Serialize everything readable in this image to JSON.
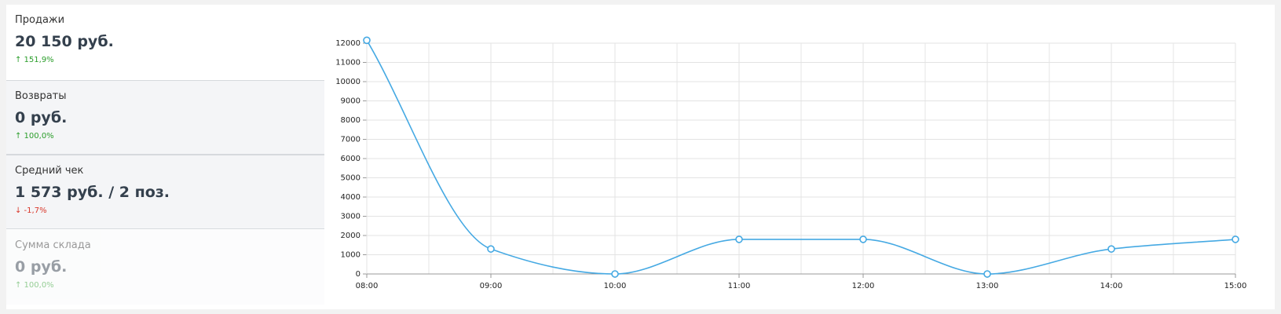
{
  "cards": [
    {
      "title": "Продажи",
      "value": "20 150 руб.",
      "change": "↑ 151,9%",
      "change_color": "#2a9d2a"
    },
    {
      "title": "Возвраты",
      "value": "0 руб.",
      "change": "↑ 100,0%",
      "change_color": "#2a9d2a"
    },
    {
      "title": "Средний чек",
      "value": "1 573 руб. / 2 поз.",
      "change": "↓ -1,7%",
      "change_color": "#d9382b"
    },
    {
      "title": "Сумма склада",
      "value": "0 руб.",
      "change": "↑ 100,0%",
      "change_color": "#2a9d2a"
    }
  ],
  "chart_data": {
    "type": "line",
    "categories": [
      "08:00",
      "09:00",
      "10:00",
      "11:00",
      "12:00",
      "13:00",
      "14:00",
      "15:00"
    ],
    "values": [
      12150,
      1300,
      0,
      1800,
      1800,
      0,
      1300,
      1800
    ],
    "color": "#45a9e3",
    "ylim": [
      0,
      12000
    ],
    "yticks": [
      0,
      1000,
      2000,
      3000,
      4000,
      5000,
      6000,
      7000,
      8000,
      9000,
      10000,
      11000,
      12000
    ],
    "grid": true
  }
}
